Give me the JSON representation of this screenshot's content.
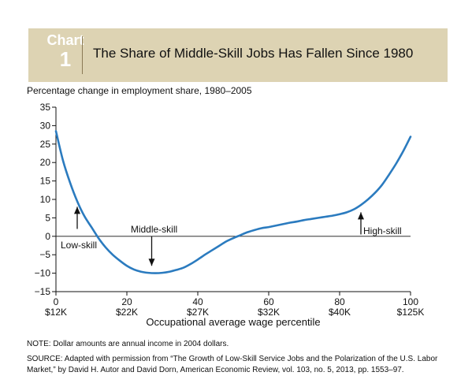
{
  "banner": {
    "chart_word": "Chart",
    "chart_number": "1"
  },
  "chart_data": {
    "type": "line",
    "title": "The Share of Middle-Skill Jobs Has Fallen Since 1980",
    "subtitle": "Percentage change in employment share, 1980–2005",
    "xlabel": "Occupational average wage percentile",
    "ylabel": "",
    "xlim": [
      0,
      100
    ],
    "ylim": [
      -15,
      35
    ],
    "x_ticks": [
      0,
      20,
      40,
      60,
      80,
      100
    ],
    "x_tick_labels": [
      "0",
      "20",
      "40",
      "60",
      "80",
      "100"
    ],
    "x_wage_labels": [
      "$12K",
      "$22K",
      "$27K",
      "$32K",
      "$40K",
      "$125K"
    ],
    "y_ticks": [
      -15,
      -10,
      -5,
      0,
      5,
      10,
      15,
      20,
      25,
      30,
      35
    ],
    "y_tick_labels": [
      "−15",
      "−10",
      "−5",
      "0",
      "5",
      "10",
      "15",
      "20",
      "25",
      "30",
      "35"
    ],
    "color": "#2b7bbf",
    "series": [
      {
        "x": [
          0,
          2,
          4,
          6,
          8,
          10,
          12,
          14,
          16,
          18,
          20,
          22,
          24,
          26,
          28,
          30,
          32,
          34,
          36,
          38,
          40,
          42,
          44,
          46,
          48,
          50,
          52,
          54,
          56,
          58,
          60,
          62,
          64,
          66,
          68,
          70,
          72,
          74,
          76,
          78,
          80,
          82,
          84,
          86,
          88,
          90,
          92,
          94,
          96,
          98,
          100
        ],
        "y": [
          28.5,
          20.5,
          14.5,
          9.5,
          5.5,
          2.5,
          -0.5,
          -3.0,
          -5.0,
          -6.6,
          -8.0,
          -9.0,
          -9.6,
          -9.9,
          -10.0,
          -9.9,
          -9.6,
          -9.1,
          -8.5,
          -7.5,
          -6.3,
          -5.0,
          -3.8,
          -2.6,
          -1.4,
          -0.5,
          0.3,
          1.1,
          1.7,
          2.2,
          2.5,
          2.9,
          3.3,
          3.7,
          4.0,
          4.4,
          4.7,
          5.0,
          5.3,
          5.6,
          6.0,
          6.5,
          7.3,
          8.5,
          10.0,
          11.8,
          14.0,
          16.8,
          19.8,
          23.2,
          27.0
        ]
      }
    ],
    "annotations": [
      {
        "text": "Low-skill",
        "arrow_x": 6,
        "arrow_from_y": 2,
        "arrow_to_y": 8
      },
      {
        "text": "Middle-skill",
        "arrow_x": 27,
        "arrow_from_y": 0,
        "arrow_to_y": -8
      },
      {
        "text": "High-skill",
        "arrow_x": 86,
        "arrow_from_y": 0.5,
        "arrow_to_y": 6.5
      }
    ]
  },
  "note": "NOTE: Dollar amounts are annual income in 2004 dollars.",
  "source": "SOURCE: Adapted with permission from “The Growth of Low-Skill Service Jobs and the Polarization of the U.S. Labor Market,” by David H. Autor and David Dorn, American Economic Review, vol. 103, no. 5, 2013, pp. 1553–97."
}
